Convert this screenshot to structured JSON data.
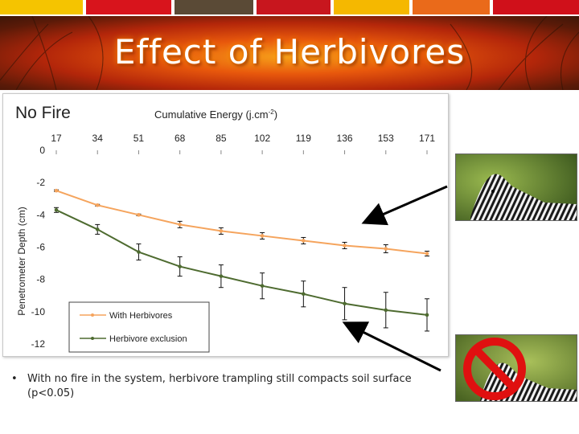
{
  "slide": {
    "title": "Effect of Herbivores",
    "bullet_mark": "•",
    "bullet": "With no fire in the system, herbivore trampling still compacts soil surface (p<0.05)"
  },
  "header_stripe_colors": [
    "#f5c400",
    "#d8141c",
    "#5a4a36",
    "#c8161e",
    "#f5b800",
    "#ea6a1a",
    "#d0101a"
  ],
  "photos": {
    "top": {
      "icon": "zebra-photo"
    },
    "bottom": {
      "icon": "zebra-photo-with-prohibition-sign"
    }
  },
  "chart_data": {
    "type": "line",
    "panel_label": "No Fire",
    "x_axis_title": "Cumulative Energy (j.cm",
    "x_axis_title_sup": "-2",
    "x_axis_title_end": ")",
    "ylabel": "Penetrometer Depth (cm)",
    "x": [
      17,
      34,
      51,
      68,
      85,
      102,
      119,
      136,
      153,
      171
    ],
    "x_ticks": [
      "17",
      "34",
      "51",
      "68",
      "85",
      "102",
      "119",
      "136",
      "153",
      "171"
    ],
    "y_ticks": [
      "0",
      "-2",
      "-4",
      "-6",
      "-8",
      "-10",
      "-12"
    ],
    "ylim": [
      -12,
      0
    ],
    "series": [
      {
        "name": "With Herbivores",
        "color": "#f5a45d",
        "values": [
          -2.5,
          -3.4,
          -4.0,
          -4.6,
          -5.0,
          -5.3,
          -5.6,
          -5.9,
          -6.1,
          -6.4
        ],
        "errors": [
          0.05,
          0.05,
          0.05,
          0.2,
          0.2,
          0.2,
          0.2,
          0.2,
          0.25,
          0.15
        ]
      },
      {
        "name": "Herbivore exclusion",
        "color": "#4e6b30",
        "values": [
          -3.7,
          -4.9,
          -6.3,
          -7.2,
          -7.8,
          -8.4,
          -8.9,
          -9.5,
          -9.9,
          -10.2
        ],
        "errors": [
          0.15,
          0.3,
          0.5,
          0.6,
          0.7,
          0.8,
          0.8,
          1.0,
          1.1,
          1.0
        ]
      }
    ],
    "legend_position": "bottom-left",
    "grid": false
  }
}
